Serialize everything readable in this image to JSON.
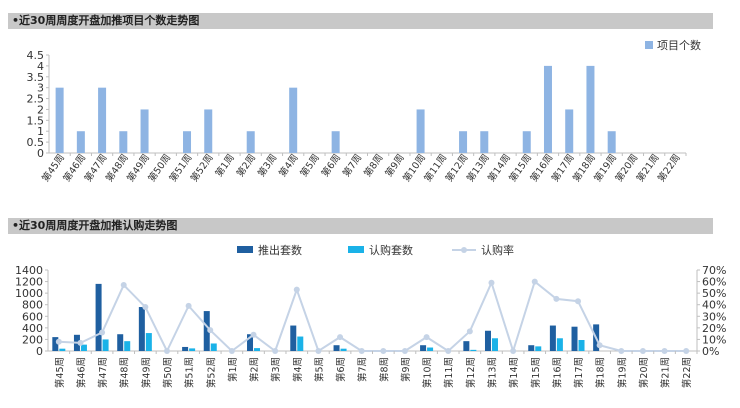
{
  "sections": [
    {
      "title": "•近30周周度开盘加推项目个数走势图"
    },
    {
      "title": "•近30周周度开盘加推认购走势图"
    }
  ],
  "weeks": [
    "第45周",
    "第46周",
    "第47周",
    "第48周",
    "第49周",
    "第50周",
    "第51周",
    "第52周",
    "第1周",
    "第2周",
    "第3周",
    "第4周",
    "第5周",
    "第6周",
    "第7周",
    "第8周",
    "第9周",
    "第10周",
    "第11周",
    "第12周",
    "第13周",
    "第14周",
    "第15周",
    "第16周",
    "第17周",
    "第18周",
    "第19周",
    "第20周",
    "第21周",
    "第22周"
  ],
  "colors": {
    "projects": "#8eb4e3",
    "launched": "#1f5fa0",
    "subscribed": "#1ab2e8",
    "rate": "#c5d3e6",
    "header_bg": "#c8c8c8",
    "grid": "#d9d9d9"
  },
  "chart_data": [
    {
      "type": "bar",
      "categories": [
        "第45周",
        "第46周",
        "第47周",
        "第48周",
        "第49周",
        "第50周",
        "第51周",
        "第52周",
        "第1周",
        "第2周",
        "第3周",
        "第4周",
        "第5周",
        "第6周",
        "第7周",
        "第8周",
        "第9周",
        "第10周",
        "第11周",
        "第12周",
        "第13周",
        "第14周",
        "第15周",
        "第16周",
        "第17周",
        "第18周",
        "第19周",
        "第20周",
        "第21周",
        "第22周"
      ],
      "series": [
        {
          "name": "项目个数",
          "values": [
            3,
            1,
            3,
            1,
            2,
            0,
            1,
            2,
            0,
            1,
            0,
            3,
            0,
            1,
            0,
            0,
            0,
            2,
            0,
            1,
            1,
            0,
            1,
            4,
            2,
            4,
            1,
            0,
            0,
            0
          ]
        }
      ],
      "ylim": [
        0,
        4.5
      ],
      "yticks": [
        "0",
        "0.5",
        "1",
        "1.5",
        "2",
        "2.5",
        "3",
        "3.5",
        "4",
        "4.5"
      ],
      "legend_position": "top-right",
      "grid": false
    },
    {
      "type": "bar",
      "categories": [
        "第45周",
        "第46周",
        "第47周",
        "第48周",
        "第49周",
        "第50周",
        "第51周",
        "第52周",
        "第1周",
        "第2周",
        "第3周",
        "第4周",
        "第5周",
        "第6周",
        "第7周",
        "第8周",
        "第9周",
        "第10周",
        "第11周",
        "第12周",
        "第13周",
        "第14周",
        "第15周",
        "第16周",
        "第17周",
        "第18周",
        "第19周",
        "第20周",
        "第21周",
        "第22周"
      ],
      "series": [
        {
          "name": "推出套数",
          "type": "bar",
          "values": [
            240,
            280,
            1160,
            290,
            760,
            0,
            70,
            690,
            0,
            290,
            0,
            440,
            0,
            100,
            0,
            0,
            0,
            100,
            0,
            170,
            350,
            0,
            100,
            440,
            420,
            460,
            0,
            0,
            0,
            0
          ]
        },
        {
          "name": "认购套数",
          "type": "bar",
          "values": [
            40,
            110,
            200,
            170,
            310,
            0,
            45,
            130,
            0,
            50,
            0,
            250,
            0,
            40,
            0,
            0,
            0,
            60,
            0,
            20,
            220,
            0,
            80,
            220,
            190,
            0,
            0,
            0,
            0,
            0
          ]
        },
        {
          "name": "认购率",
          "type": "line",
          "axis": "right",
          "values": [
            8,
            7,
            16,
            57,
            38,
            0,
            39,
            18,
            0,
            14,
            0,
            53,
            0,
            12,
            0,
            0,
            0,
            12,
            0,
            17,
            59,
            0,
            60,
            45,
            43,
            5,
            0,
            0,
            0,
            0
          ]
        }
      ],
      "ylim": [
        0,
        1400
      ],
      "y2lim": [
        0,
        70
      ],
      "yticks": [
        "0",
        "200",
        "400",
        "600",
        "800",
        "1000",
        "1200",
        "1400"
      ],
      "y2ticks": [
        "0%",
        "10%",
        "20%",
        "30%",
        "40%",
        "50%",
        "60%",
        "70%"
      ],
      "legend_position": "top-center",
      "grid": false
    }
  ]
}
